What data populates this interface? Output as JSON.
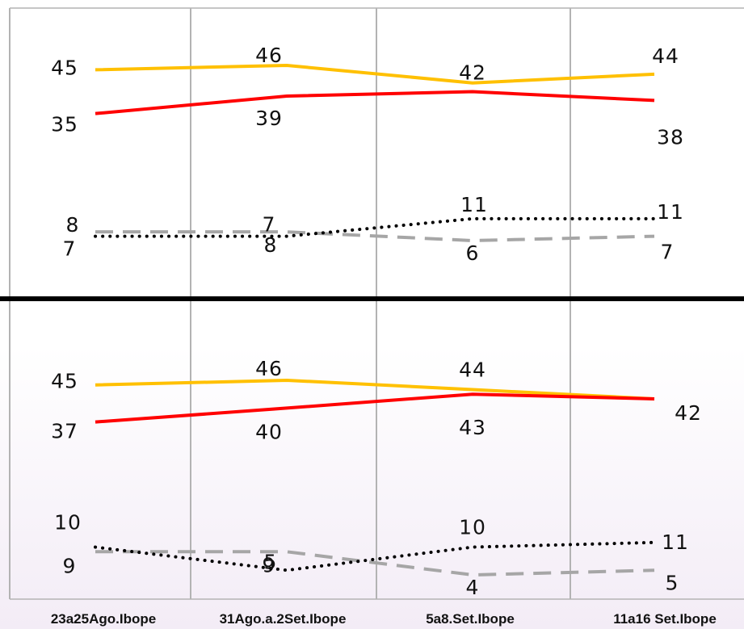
{
  "chart_data": {
    "type": "line",
    "categories": [
      "23a25Ago.Ibope",
      "31Ago.a.2Set.Ibope",
      "5a8.Set.Ibope",
      "11a16 Set.Ibope"
    ],
    "panels": [
      {
        "series": [
          {
            "color": "#ffc000",
            "style": "solid",
            "values": [
              45,
              46,
              42,
              44
            ],
            "labels": [
              "45",
              "46",
              "42",
              "44"
            ]
          },
          {
            "color": "#ff0000",
            "style": "solid",
            "values": [
              35,
              39,
              40,
              38
            ],
            "labels": [
              "35",
              "39",
              "",
              "38"
            ]
          },
          {
            "color": "#a6a6a6",
            "style": "dashed",
            "values": [
              8,
              8,
              6,
              7
            ],
            "labels": [
              "8",
              "8",
              "6",
              "7"
            ]
          },
          {
            "color": "#000000",
            "style": "dotted",
            "values": [
              7,
              7,
              11,
              11
            ],
            "labels": [
              "7",
              "7",
              "11",
              "11"
            ]
          }
        ]
      },
      {
        "series": [
          {
            "color": "#ffc000",
            "style": "solid",
            "values": [
              45,
              46,
              44,
              42
            ],
            "labels": [
              "45",
              "46",
              "44",
              "42"
            ]
          },
          {
            "color": "#ff0000",
            "style": "solid",
            "values": [
              37,
              40,
              43,
              42
            ],
            "labels": [
              "37",
              "40",
              "43",
              ""
            ]
          },
          {
            "color": "#a6a6a6",
            "style": "dashed",
            "values": [
              9,
              9,
              4,
              5
            ],
            "labels": [
              "9",
              "9",
              "4",
              "5"
            ]
          },
          {
            "color": "#000000",
            "style": "dotted",
            "values": [
              10,
              5,
              10,
              11
            ],
            "labels": [
              "10",
              "5",
              "10",
              "11"
            ]
          }
        ]
      }
    ]
  }
}
